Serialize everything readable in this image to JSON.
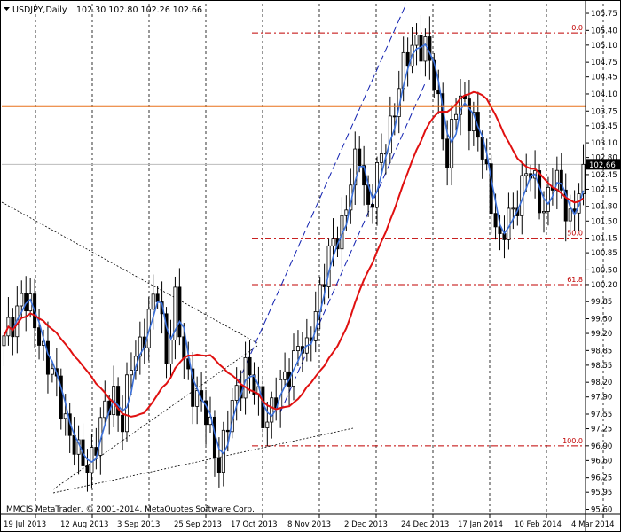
{
  "header": {
    "symbol": "USDJPY,Daily",
    "ohlc": "102.30 102.80 102.26 102.66",
    "menu_icon": "triangle-down-icon"
  },
  "copyright": "MMCIS MetaTrader, © 2001-2014, MetaQuotes Software Corp.",
  "colors": {
    "candle": "#000000",
    "fast_ma": "#3a6fd8",
    "slow_ma": "#e01010",
    "horizontal_level": "#e8701a",
    "fib": "#c00000",
    "channel": "#1020b0",
    "grid": "#000000",
    "price_tag_bg": "#000000",
    "price_tag_text": "#ffffff"
  },
  "chart_data": {
    "type": "candlestick",
    "ylim": [
      95.5,
      105.95
    ],
    "y_ticks": [
      "105.75",
      "105.40",
      "105.10",
      "104.75",
      "104.45",
      "104.10",
      "103.75",
      "103.45",
      "103.10",
      "102.80",
      "102.45",
      "102.15",
      "101.80",
      "101.50",
      "101.15",
      "100.85",
      "100.50",
      "100.20",
      "99.85",
      "99.50",
      "99.20",
      "98.85",
      "98.55",
      "98.20",
      "97.90",
      "97.55",
      "97.25",
      "96.90",
      "96.60",
      "96.25",
      "95.95",
      "95.60"
    ],
    "x_ticks": [
      "19 Jul 2013",
      "12 Aug 2013",
      "3 Sep 2013",
      "25 Sep 2013",
      "17 Oct 2013",
      "8 Nov 2013",
      "2 Dec 2013",
      "24 Dec 2013",
      "17 Jan 2014",
      "10 Feb 2014",
      "4 Mar 2014"
    ],
    "current_price": "102.66",
    "horizontal_level": 103.85,
    "fibonacci": [
      {
        "label": "0.0",
        "price": 105.35
      },
      {
        "label": "50.0",
        "price": 101.15
      },
      {
        "label": "61.8",
        "price": 100.2
      },
      {
        "label": "100.0",
        "price": 96.9
      }
    ],
    "fast_ma_label": "",
    "slow_ma_label": "",
    "anchors": [
      [
        0,
        99.0
      ],
      [
        4,
        100.0
      ],
      [
        8,
        99.2
      ],
      [
        11,
        98.3
      ],
      [
        14,
        97.5
      ],
      [
        17,
        96.6
      ],
      [
        19,
        96.5
      ],
      [
        22,
        97.3
      ],
      [
        25,
        98.0
      ],
      [
        27,
        97.4
      ],
      [
        29,
        98.5
      ],
      [
        32,
        99.3
      ],
      [
        35,
        100.0
      ],
      [
        37,
        98.8
      ],
      [
        39,
        99.8
      ],
      [
        41,
        98.6
      ],
      [
        44,
        97.9
      ],
      [
        47,
        97.2
      ],
      [
        49,
        96.6
      ],
      [
        51,
        97.3
      ],
      [
        53,
        98.0
      ],
      [
        55,
        98.6
      ],
      [
        57,
        98.0
      ],
      [
        59,
        97.5
      ],
      [
        61,
        97.7
      ],
      [
        63,
        98.0
      ],
      [
        65,
        98.5
      ],
      [
        67,
        99.0
      ],
      [
        69,
        98.7
      ],
      [
        71,
        99.8
      ],
      [
        74,
        100.7
      ],
      [
        77,
        101.5
      ],
      [
        79,
        102.3
      ],
      [
        81,
        102.8
      ],
      [
        83,
        101.8
      ],
      [
        86,
        102.7
      ],
      [
        88,
        103.5
      ],
      [
        90,
        104.3
      ],
      [
        92,
        104.8
      ],
      [
        94,
        105.3
      ],
      [
        96,
        105.0
      ],
      [
        98,
        104.3
      ],
      [
        100,
        103.5
      ],
      [
        101,
        102.7
      ],
      [
        103,
        103.8
      ],
      [
        105,
        104.0
      ],
      [
        107,
        103.5
      ],
      [
        109,
        102.8
      ],
      [
        111,
        102.0
      ],
      [
        113,
        101.0
      ],
      [
        115,
        101.5
      ],
      [
        117,
        102.0
      ],
      [
        119,
        102.5
      ],
      [
        121,
        102.2
      ],
      [
        123,
        101.8
      ],
      [
        125,
        102.3
      ],
      [
        127,
        102.1
      ],
      [
        129,
        101.6
      ],
      [
        131,
        102.0
      ],
      [
        132,
        102.66
      ]
    ]
  }
}
